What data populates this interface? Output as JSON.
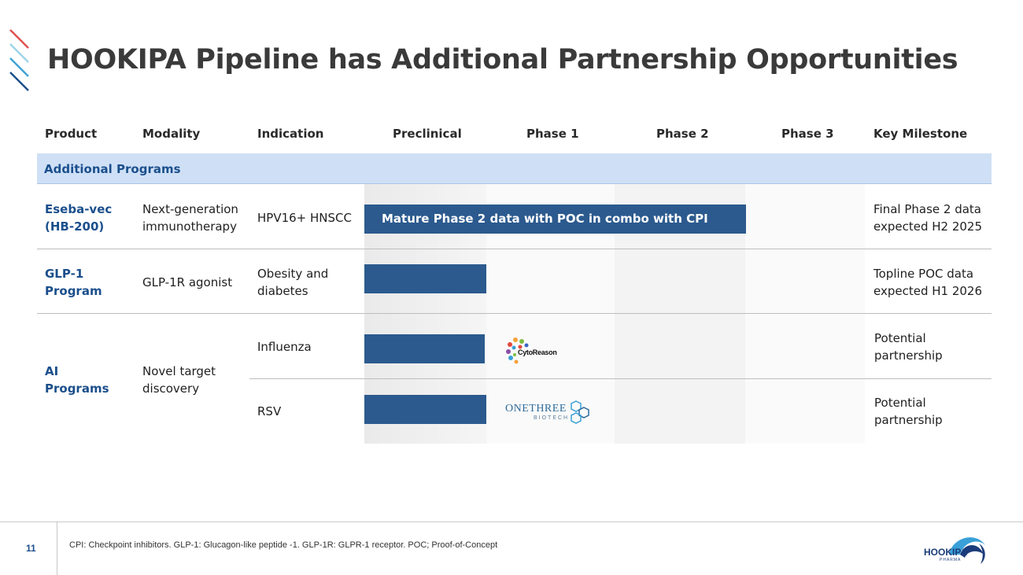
{
  "title": "HOOKIPA Pipeline has Additional Partnership Opportunities",
  "columns": [
    "Product",
    "Modality",
    "Indication",
    "Preclinical",
    "Phase 1",
    "Phase 2",
    "Phase 3",
    "Key Milestone"
  ],
  "section_label": "Additional Programs",
  "rows": [
    {
      "product": [
        "Eseba-vec",
        "(HB-200)"
      ],
      "modality": [
        "Next-generation",
        "immunotherapy"
      ],
      "indication": [
        "HPV16+ HNSCC"
      ],
      "bar_label": "Mature Phase 2 data with POC in combo with CPI",
      "milestone": [
        "Final Phase 2 data",
        "expected H2 2025"
      ]
    },
    {
      "product": [
        "GLP-1",
        "Program"
      ],
      "modality": [
        "GLP-1R agonist"
      ],
      "indication": [
        "Obesity and",
        "diabetes"
      ],
      "milestone": [
        "Topline POC data",
        "expected H1 2026"
      ]
    },
    {
      "product": [
        "AI",
        "Programs"
      ],
      "modality": [
        "Novel target",
        "discovery"
      ],
      "sub_rows": [
        {
          "indication": "Influenza",
          "partner_logo": "CytoReason",
          "milestone": [
            "Potential",
            "partnership"
          ]
        },
        {
          "indication": "RSV",
          "partner_logo": "OneThree Biotech",
          "milestone": [
            "Potential",
            "partnership"
          ]
        }
      ]
    }
  ],
  "logos": {
    "cytoreason": "CytoReason",
    "onethree_main": "ONETHREE",
    "onethree_sub": "BIOTECH",
    "hookipa_main": "HOOKIPA",
    "hookipa_sub": "PHARMA"
  },
  "footer": {
    "page_number": "11",
    "footnote": "CPI: Checkpoint inhibitors. GLP-1: Glucagon-like peptide -1. GLP-1R: GLPR-1 receptor. POC; Proof-of-Concept"
  },
  "colors": {
    "bar": "#2c5a8e",
    "section_band": "#cfe0f6",
    "product_text": "#1b4f8c"
  }
}
